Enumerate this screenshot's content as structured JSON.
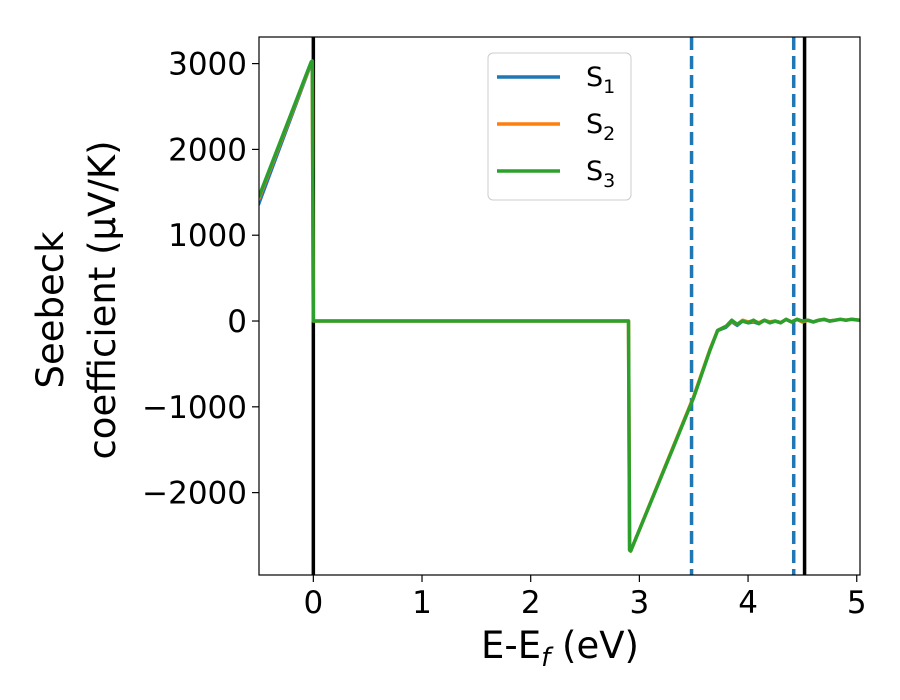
{
  "chart_data": {
    "type": "line",
    "xlabel_main": "E-E",
    "xlabel_sub": "f",
    "xlabel_unit": " (eV)",
    "ylabel_line1": "Seebeck",
    "ylabel_line2": "coefficient  (μV/K)",
    "xlim": [
      -0.5,
      5.03
    ],
    "ylim": [
      -2960,
      3310
    ],
    "x_ticks": [
      0,
      1,
      2,
      3,
      4,
      5
    ],
    "x_tick_labels": [
      "0",
      "1",
      "2",
      "3",
      "4",
      "5"
    ],
    "y_ticks": [
      -2000,
      -1000,
      0,
      1000,
      2000,
      3000
    ],
    "y_tick_labels": [
      "−2000",
      "−1000",
      "0",
      "1000",
      "2000",
      "3000"
    ],
    "grid": false,
    "legend_position": "top-center",
    "series": [
      {
        "name": "S",
        "subscript": "1",
        "color": "#1f77b4",
        "x": [
          -0.5,
          -0.02,
          -0.01,
          0.0,
          1.0,
          2.0,
          2.9,
          2.91,
          2.92,
          3.3,
          3.5,
          3.65,
          3.72,
          3.8,
          3.85,
          3.9,
          3.95,
          4.0,
          4.05,
          4.1,
          4.15,
          4.2,
          4.25,
          4.3,
          4.35,
          4.4,
          4.45,
          4.5,
          4.55,
          4.6,
          4.65,
          4.7,
          4.75,
          4.8,
          4.85,
          4.9,
          4.95,
          5.03
        ],
        "y": [
          1350,
          2980,
          2990,
          0,
          0,
          0,
          0,
          -2650,
          -2660,
          -1500,
          -900,
          -350,
          -120,
          -80,
          -20,
          -60,
          -10,
          -30,
          -20,
          -40,
          0,
          -30,
          -10,
          -30,
          10,
          -20,
          10,
          -20,
          0,
          -20,
          0,
          10,
          -10,
          0,
          20,
          0,
          20,
          0
        ]
      },
      {
        "name": "S",
        "subscript": "2",
        "color": "#ff7f0e",
        "x": [
          -0.5,
          -0.02,
          -0.01,
          0.0,
          1.0,
          2.0,
          2.9,
          2.91,
          2.92,
          3.3,
          3.5,
          3.65,
          3.72,
          3.8,
          3.85,
          3.9,
          3.95,
          4.0,
          4.05,
          4.1,
          4.15,
          4.2,
          4.25,
          4.3,
          4.35,
          4.4,
          4.45,
          4.5,
          4.55,
          4.6,
          4.65,
          4.7,
          4.75,
          4.8,
          4.85,
          4.9,
          4.95,
          5.03
        ],
        "y": [
          1430,
          3010,
          3020,
          0,
          0,
          0,
          0,
          -2670,
          -2680,
          -1500,
          -880,
          -330,
          -110,
          -60,
          0,
          -40,
          10,
          -10,
          0,
          -20,
          10,
          -10,
          0,
          -20,
          20,
          -10,
          20,
          -10,
          10,
          -10,
          10,
          20,
          0,
          10,
          20,
          10,
          20,
          10
        ]
      },
      {
        "name": "S",
        "subscript": "3",
        "color": "#2ca02c",
        "x": [
          -0.5,
          -0.02,
          -0.01,
          0.0,
          1.0,
          2.0,
          2.9,
          2.91,
          2.92,
          3.3,
          3.5,
          3.65,
          3.72,
          3.8,
          3.85,
          3.9,
          3.95,
          4.0,
          4.05,
          4.1,
          4.15,
          4.2,
          4.25,
          4.3,
          4.35,
          4.4,
          4.45,
          4.5,
          4.55,
          4.6,
          4.65,
          4.7,
          4.75,
          4.8,
          4.85,
          4.9,
          4.95,
          5.03
        ],
        "y": [
          1450,
          3020,
          3030,
          0,
          0,
          0,
          0,
          -2670,
          -2680,
          -1510,
          -890,
          -340,
          -110,
          -60,
          10,
          -40,
          0,
          -20,
          10,
          -30,
          10,
          -20,
          0,
          -20,
          20,
          -10,
          20,
          0,
          10,
          -10,
          10,
          20,
          0,
          10,
          20,
          10,
          20,
          10
        ]
      }
    ],
    "vertical_lines": [
      {
        "x": 0.0,
        "style": "solid",
        "color": "#000000"
      },
      {
        "x": 4.52,
        "style": "solid",
        "color": "#000000"
      },
      {
        "x": 3.48,
        "style": "dashed",
        "color": "#1f77b4"
      },
      {
        "x": 4.42,
        "style": "dashed",
        "color": "#1f77b4"
      }
    ]
  }
}
